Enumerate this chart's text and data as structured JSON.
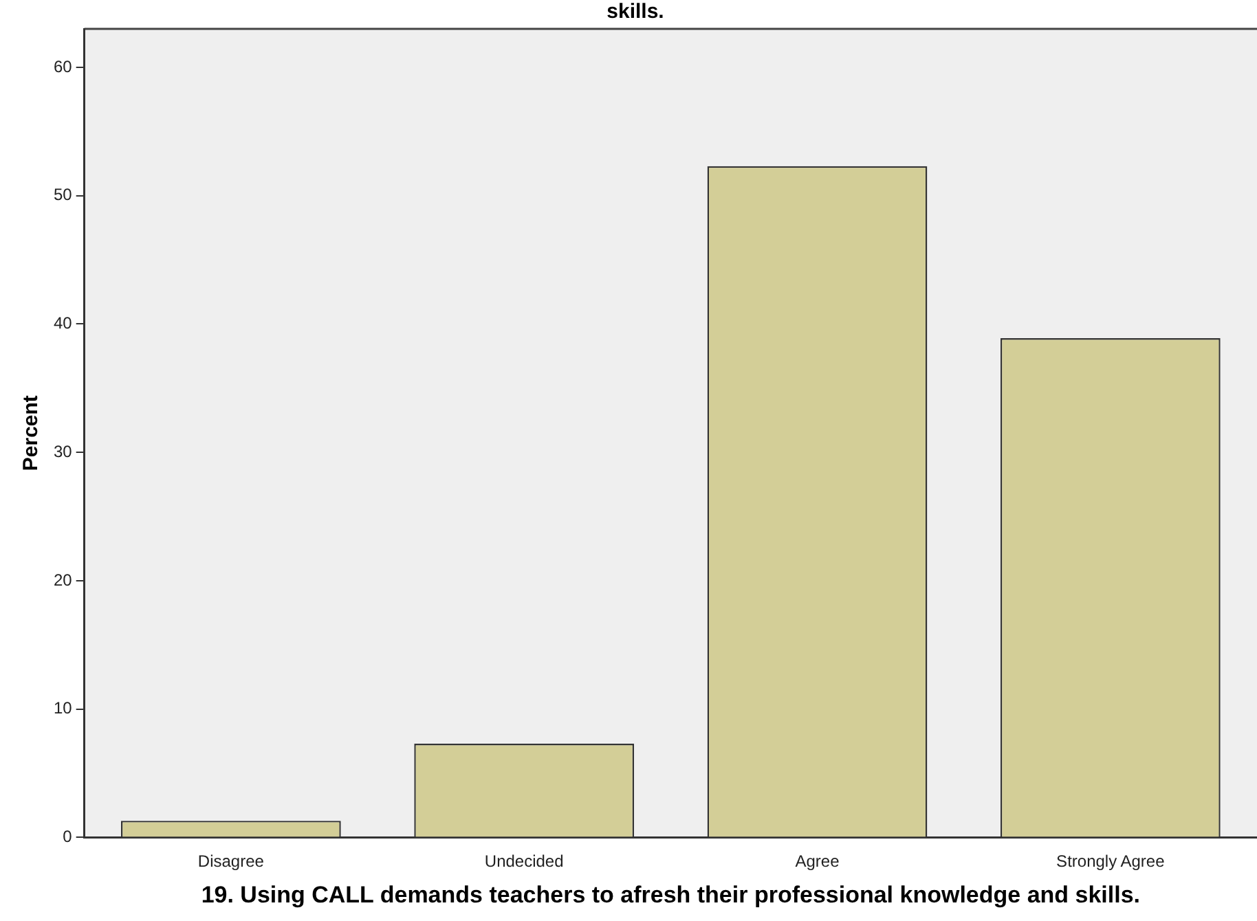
{
  "chart_data": {
    "type": "bar",
    "title": "skills.",
    "xlabel": "19. Using CALL demands teachers to afresh their professional knowledge and skills.",
    "ylabel": "Percent",
    "categories": [
      "Disagree",
      "Undecided",
      "Agree",
      "Strongly Agree"
    ],
    "values": [
      1.3,
      7.3,
      52.3,
      38.9
    ],
    "color": "#d3ce97",
    "ylim": [
      0,
      63
    ],
    "yticks": [
      0,
      10,
      20,
      30,
      40,
      50,
      60
    ],
    "grid": false,
    "legend": false
  }
}
